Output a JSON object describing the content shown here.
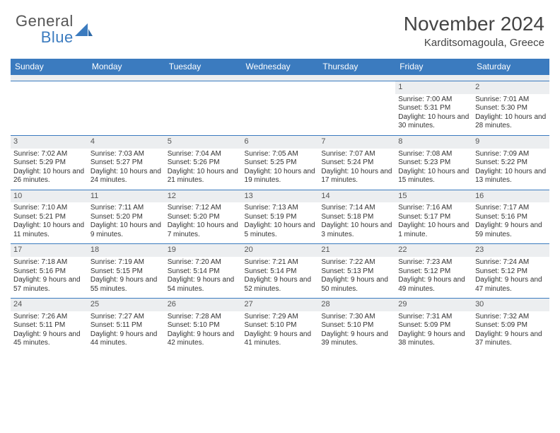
{
  "logo": {
    "line1": "General",
    "line2": "Blue"
  },
  "title": {
    "month": "November 2024",
    "location": "Karditsomagoula, Greece"
  },
  "style": {
    "header_bg": "#3b7bbf",
    "header_fg": "#ffffff",
    "daynum_bg": "#eceef0",
    "row_border": "#3b7bbf",
    "body_font_size": 10,
    "header_font_size": 12,
    "title_font_size": 28,
    "location_font_size": 15
  },
  "weekdays": [
    "Sunday",
    "Monday",
    "Tuesday",
    "Wednesday",
    "Thursday",
    "Friday",
    "Saturday"
  ],
  "first_weekday_index": 5,
  "days": [
    {
      "n": 1,
      "sunrise": "7:00 AM",
      "sunset": "5:31 PM",
      "daylight": "10 hours and 30 minutes."
    },
    {
      "n": 2,
      "sunrise": "7:01 AM",
      "sunset": "5:30 PM",
      "daylight": "10 hours and 28 minutes."
    },
    {
      "n": 3,
      "sunrise": "7:02 AM",
      "sunset": "5:29 PM",
      "daylight": "10 hours and 26 minutes."
    },
    {
      "n": 4,
      "sunrise": "7:03 AM",
      "sunset": "5:27 PM",
      "daylight": "10 hours and 24 minutes."
    },
    {
      "n": 5,
      "sunrise": "7:04 AM",
      "sunset": "5:26 PM",
      "daylight": "10 hours and 21 minutes."
    },
    {
      "n": 6,
      "sunrise": "7:05 AM",
      "sunset": "5:25 PM",
      "daylight": "10 hours and 19 minutes."
    },
    {
      "n": 7,
      "sunrise": "7:07 AM",
      "sunset": "5:24 PM",
      "daylight": "10 hours and 17 minutes."
    },
    {
      "n": 8,
      "sunrise": "7:08 AM",
      "sunset": "5:23 PM",
      "daylight": "10 hours and 15 minutes."
    },
    {
      "n": 9,
      "sunrise": "7:09 AM",
      "sunset": "5:22 PM",
      "daylight": "10 hours and 13 minutes."
    },
    {
      "n": 10,
      "sunrise": "7:10 AM",
      "sunset": "5:21 PM",
      "daylight": "10 hours and 11 minutes."
    },
    {
      "n": 11,
      "sunrise": "7:11 AM",
      "sunset": "5:20 PM",
      "daylight": "10 hours and 9 minutes."
    },
    {
      "n": 12,
      "sunrise": "7:12 AM",
      "sunset": "5:20 PM",
      "daylight": "10 hours and 7 minutes."
    },
    {
      "n": 13,
      "sunrise": "7:13 AM",
      "sunset": "5:19 PM",
      "daylight": "10 hours and 5 minutes."
    },
    {
      "n": 14,
      "sunrise": "7:14 AM",
      "sunset": "5:18 PM",
      "daylight": "10 hours and 3 minutes."
    },
    {
      "n": 15,
      "sunrise": "7:16 AM",
      "sunset": "5:17 PM",
      "daylight": "10 hours and 1 minute."
    },
    {
      "n": 16,
      "sunrise": "7:17 AM",
      "sunset": "5:16 PM",
      "daylight": "9 hours and 59 minutes."
    },
    {
      "n": 17,
      "sunrise": "7:18 AM",
      "sunset": "5:16 PM",
      "daylight": "9 hours and 57 minutes."
    },
    {
      "n": 18,
      "sunrise": "7:19 AM",
      "sunset": "5:15 PM",
      "daylight": "9 hours and 55 minutes."
    },
    {
      "n": 19,
      "sunrise": "7:20 AM",
      "sunset": "5:14 PM",
      "daylight": "9 hours and 54 minutes."
    },
    {
      "n": 20,
      "sunrise": "7:21 AM",
      "sunset": "5:14 PM",
      "daylight": "9 hours and 52 minutes."
    },
    {
      "n": 21,
      "sunrise": "7:22 AM",
      "sunset": "5:13 PM",
      "daylight": "9 hours and 50 minutes."
    },
    {
      "n": 22,
      "sunrise": "7:23 AM",
      "sunset": "5:12 PM",
      "daylight": "9 hours and 49 minutes."
    },
    {
      "n": 23,
      "sunrise": "7:24 AM",
      "sunset": "5:12 PM",
      "daylight": "9 hours and 47 minutes."
    },
    {
      "n": 24,
      "sunrise": "7:26 AM",
      "sunset": "5:11 PM",
      "daylight": "9 hours and 45 minutes."
    },
    {
      "n": 25,
      "sunrise": "7:27 AM",
      "sunset": "5:11 PM",
      "daylight": "9 hours and 44 minutes."
    },
    {
      "n": 26,
      "sunrise": "7:28 AM",
      "sunset": "5:10 PM",
      "daylight": "9 hours and 42 minutes."
    },
    {
      "n": 27,
      "sunrise": "7:29 AM",
      "sunset": "5:10 PM",
      "daylight": "9 hours and 41 minutes."
    },
    {
      "n": 28,
      "sunrise": "7:30 AM",
      "sunset": "5:10 PM",
      "daylight": "9 hours and 39 minutes."
    },
    {
      "n": 29,
      "sunrise": "7:31 AM",
      "sunset": "5:09 PM",
      "daylight": "9 hours and 38 minutes."
    },
    {
      "n": 30,
      "sunrise": "7:32 AM",
      "sunset": "5:09 PM",
      "daylight": "9 hours and 37 minutes."
    }
  ],
  "labels": {
    "sunrise": "Sunrise:",
    "sunset": "Sunset:",
    "daylight": "Daylight:"
  }
}
